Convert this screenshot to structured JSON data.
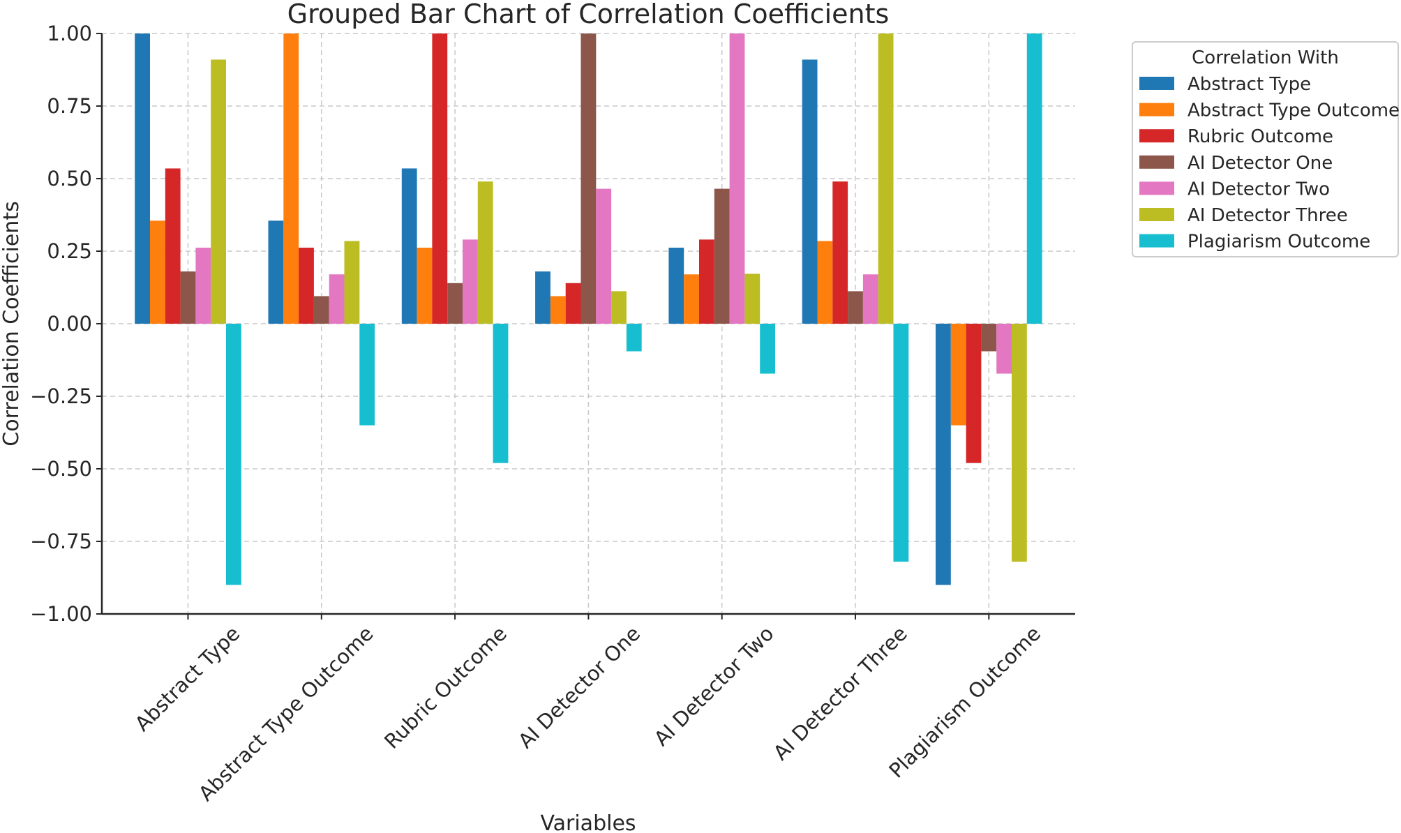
{
  "chart_data": {
    "type": "bar",
    "title": "Grouped Bar Chart of Correlation Coefficients",
    "xlabel": "Variables",
    "ylabel": "Correlation Coefficients",
    "ylim": [
      -1.0,
      1.0
    ],
    "yticks": [
      "1.00",
      "0.75",
      "0.50",
      "0.25",
      "0.00",
      "−0.25",
      "−0.50",
      "−0.75",
      "−1.00"
    ],
    "ytick_values": [
      1.0,
      0.75,
      0.5,
      0.25,
      0.0,
      -0.25,
      -0.5,
      -0.75,
      -1.0
    ],
    "grid": true,
    "legend_title": "Correlation With",
    "legend_position": "outside-top-right",
    "categories": [
      "Abstract Type",
      "Abstract Type Outcome",
      "Rubric Outcome",
      "AI Detector One",
      "AI Detector Two",
      "AI Detector Three",
      "Plagiarism Outcome"
    ],
    "series": [
      {
        "name": "Abstract Type",
        "color": "#1f77b4",
        "values": [
          1.0,
          0.355,
          0.535,
          0.18,
          0.262,
          0.91,
          -0.9
        ]
      },
      {
        "name": "Abstract Type Outcome",
        "color": "#ff7f0e",
        "values": [
          0.355,
          1.0,
          0.262,
          0.095,
          0.17,
          0.285,
          -0.35
        ]
      },
      {
        "name": "Rubric Outcome",
        "color": "#d62728",
        "values": [
          0.535,
          0.262,
          1.0,
          0.14,
          0.29,
          0.49,
          -0.48
        ]
      },
      {
        "name": "AI Detector One",
        "color": "#8c564b",
        "values": [
          0.18,
          0.095,
          0.14,
          1.0,
          0.465,
          0.112,
          -0.095
        ]
      },
      {
        "name": "AI Detector Two",
        "color": "#e377c2",
        "values": [
          0.262,
          0.17,
          0.29,
          0.465,
          1.0,
          0.17,
          -0.172
        ]
      },
      {
        "name": "AI Detector Three",
        "color": "#bcbd22",
        "values": [
          0.91,
          0.285,
          0.49,
          0.112,
          0.172,
          1.0,
          -0.82
        ]
      },
      {
        "name": "Plagiarism Outcome",
        "color": "#17becf",
        "values": [
          -0.9,
          -0.35,
          -0.48,
          -0.095,
          -0.172,
          -0.82,
          1.0
        ]
      }
    ]
  }
}
